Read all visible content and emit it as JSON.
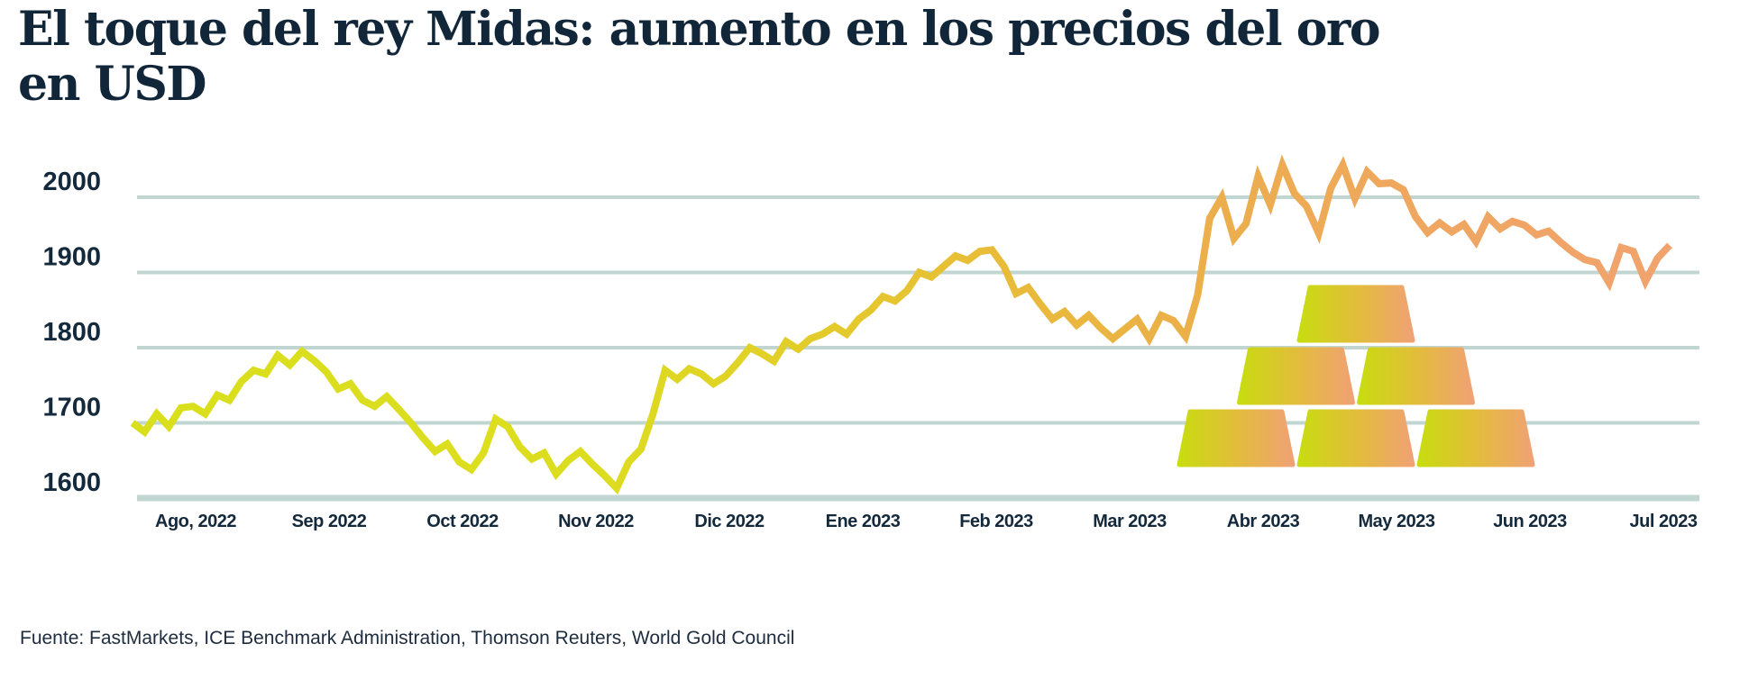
{
  "header": {
    "title_line1": "El toque del rey Midas: aumento en los precios del oro",
    "title_line2": "en USD"
  },
  "footer": {
    "source": "Fuente: FastMarkets, ICE Benchmark Administration, Thomson Reuters, World Gold Council"
  },
  "chart_data": {
    "type": "line",
    "title": "El toque del rey Midas: aumento en los precios del oro en USD",
    "xlabel": "",
    "ylabel": "",
    "grid": true,
    "legend_position": "none",
    "ylim": [
      1600,
      2060
    ],
    "y_ticks": [
      1600,
      1700,
      1800,
      1900,
      2000
    ],
    "y_tick_labels": [
      "1600",
      "1700",
      "1800",
      "1900",
      "2000"
    ],
    "x_tick_labels": [
      "Ago, 2022",
      "Sep 2022",
      "Oct 2022",
      "Nov 2022",
      "Dic 2022",
      "Ene 2023",
      "Feb 2023",
      "Mar 2023",
      "Abr 2023",
      "May 2023",
      "Jun 2023",
      "Jul 2023"
    ],
    "annotation": "pyramid of six gold bars drawn over the gridlines (decorative illustration)",
    "values": [
      1700,
      1688,
      1712,
      1695,
      1720,
      1722,
      1712,
      1737,
      1730,
      1755,
      1770,
      1765,
      1790,
      1777,
      1795,
      1783,
      1768,
      1745,
      1752,
      1730,
      1722,
      1735,
      1718,
      1700,
      1680,
      1662,
      1672,
      1648,
      1638,
      1660,
      1705,
      1695,
      1668,
      1652,
      1660,
      1632,
      1650,
      1662,
      1645,
      1630,
      1613,
      1648,
      1665,
      1712,
      1770,
      1758,
      1772,
      1765,
      1752,
      1762,
      1780,
      1800,
      1792,
      1782,
      1808,
      1798,
      1812,
      1818,
      1828,
      1818,
      1838,
      1850,
      1868,
      1862,
      1876,
      1900,
      1894,
      1908,
      1922,
      1916,
      1928,
      1930,
      1908,
      1872,
      1880,
      1858,
      1838,
      1848,
      1830,
      1843,
      1826,
      1812,
      1825,
      1838,
      1812,
      1843,
      1836,
      1815,
      1870,
      1972,
      2000,
      1945,
      1965,
      2028,
      1990,
      2043,
      2005,
      1988,
      1952,
      2012,
      2043,
      1998,
      2034,
      2018,
      2019,
      2010,
      1974,
      1953,
      1966,
      1954,
      1964,
      1941,
      1974,
      1958,
      1968,
      1963,
      1950,
      1955,
      1940,
      1927,
      1917,
      1913,
      1886,
      1933,
      1928,
      1888,
      1919,
      1936
    ]
  },
  "colors": {
    "title_text": "#12263a",
    "axis_text": "#14293c",
    "grid": "#c1d5d1",
    "line_gradient_start": "#dadf1c",
    "line_gradient_mid": "#e8bc38",
    "line_gradient_end": "#f0a36e",
    "bar_gradient_start": "#c8dc10",
    "bar_gradient_mid": "#e2bd3a",
    "bar_gradient_end": "#f0a274"
  }
}
